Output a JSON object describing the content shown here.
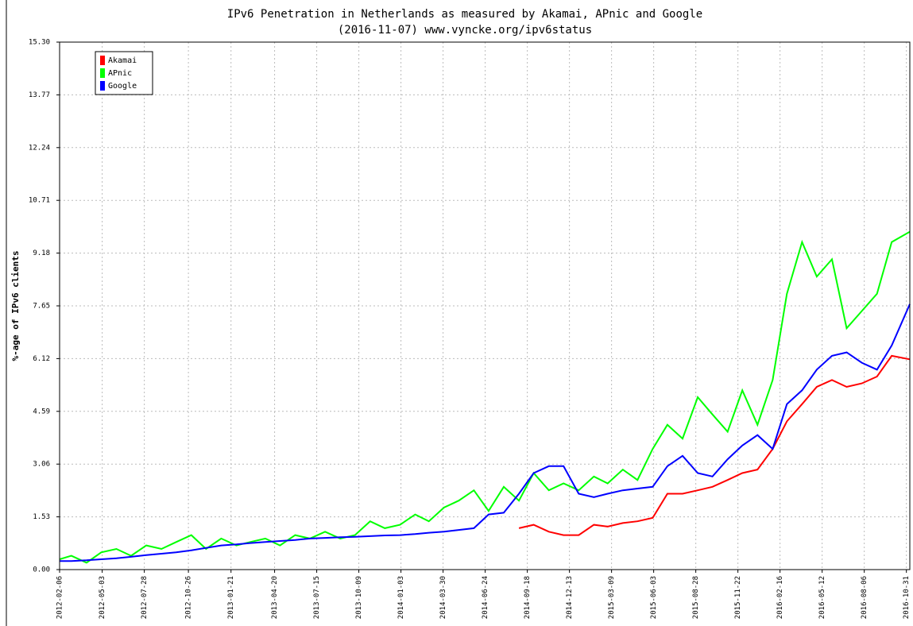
{
  "chart_data": {
    "type": "line",
    "title": "IPv6 Penetration in Netherlands as measured by Akamai, APnic and Google",
    "subtitle": "(2016-11-07) www.vyncke.org/ipv6status",
    "y_label": "%-age of IPv6 clients",
    "x": [
      "2012-02-06",
      "2012-03-01",
      "2012-04-01",
      "2012-05-01",
      "2012-06-01",
      "2012-07-01",
      "2012-08-01",
      "2012-09-01",
      "2012-10-01",
      "2012-11-01",
      "2012-12-01",
      "2013-01-01",
      "2013-02-01",
      "2013-03-01",
      "2013-04-01",
      "2013-05-01",
      "2013-06-01",
      "2013-07-01",
      "2013-08-01",
      "2013-09-01",
      "2013-10-01",
      "2013-11-01",
      "2013-12-01",
      "2014-01-01",
      "2014-02-01",
      "2014-03-01",
      "2014-04-01",
      "2014-05-01",
      "2014-06-01",
      "2014-07-01",
      "2014-08-01",
      "2014-09-01",
      "2014-10-01",
      "2014-11-01",
      "2014-12-01",
      "2015-01-01",
      "2015-02-01",
      "2015-03-01",
      "2015-04-01",
      "2015-05-01",
      "2015-06-01",
      "2015-07-01",
      "2015-08-01",
      "2015-09-01",
      "2015-10-01",
      "2015-11-01",
      "2015-12-01",
      "2016-01-01",
      "2016-02-01",
      "2016-03-01",
      "2016-04-01",
      "2016-05-01",
      "2016-06-01",
      "2016-07-01",
      "2016-08-01",
      "2016-09-01",
      "2016-10-01",
      "2016-11-07"
    ],
    "series": [
      {
        "name": "Akamai",
        "color": "#ff0000",
        "values": [
          null,
          null,
          null,
          null,
          null,
          null,
          null,
          null,
          null,
          null,
          null,
          null,
          null,
          null,
          null,
          null,
          null,
          null,
          null,
          null,
          null,
          null,
          null,
          null,
          null,
          null,
          null,
          null,
          null,
          null,
          null,
          1.2,
          1.3,
          1.1,
          1.0,
          1.0,
          1.3,
          1.25,
          1.35,
          1.4,
          1.5,
          2.2,
          2.2,
          2.3,
          2.4,
          2.6,
          2.8,
          2.9,
          3.5,
          4.3,
          4.8,
          5.3,
          5.5,
          5.3,
          5.4,
          5.6,
          6.2,
          6.1
        ]
      },
      {
        "name": "APnic",
        "color": "#00ff00",
        "values": [
          0.3,
          0.4,
          0.2,
          0.5,
          0.6,
          0.4,
          0.7,
          0.6,
          0.8,
          1.0,
          0.6,
          0.9,
          0.7,
          0.8,
          0.9,
          0.7,
          1.0,
          0.9,
          1.1,
          0.9,
          1.0,
          1.4,
          1.2,
          1.3,
          1.6,
          1.4,
          1.8,
          2.0,
          2.3,
          1.7,
          2.4,
          2.0,
          2.8,
          2.3,
          2.5,
          2.3,
          2.7,
          2.5,
          2.9,
          2.6,
          3.5,
          4.2,
          3.8,
          5.0,
          4.5,
          4.0,
          5.2,
          4.2,
          5.5,
          8.0,
          9.5,
          8.5,
          9.0,
          7.0,
          7.5,
          8.0,
          9.5,
          9.8
        ]
      },
      {
        "name": "Google",
        "color": "#0000ff",
        "values": [
          0.25,
          0.25,
          0.27,
          0.3,
          0.33,
          0.37,
          0.42,
          0.46,
          0.5,
          0.56,
          0.63,
          0.7,
          0.73,
          0.77,
          0.8,
          0.83,
          0.86,
          0.9,
          0.92,
          0.94,
          0.95,
          0.97,
          0.99,
          1.0,
          1.03,
          1.07,
          1.1,
          1.15,
          1.2,
          1.6,
          1.65,
          2.2,
          2.8,
          3.0,
          3.0,
          2.2,
          2.1,
          2.2,
          2.3,
          2.35,
          2.4,
          3.0,
          3.3,
          2.8,
          2.7,
          3.2,
          3.6,
          3.9,
          3.5,
          4.8,
          5.2,
          5.8,
          6.2,
          6.3,
          6.0,
          5.8,
          6.5,
          7.7
        ]
      }
    ],
    "xlim": [
      "2012-02-06",
      "2016-11-07"
    ],
    "xticks": [
      "2012-02-06",
      "2012-05-03",
      "2012-07-28",
      "2012-10-26",
      "2013-01-21",
      "2013-04-20",
      "2013-07-15",
      "2013-10-09",
      "2014-01-03",
      "2014-03-30",
      "2014-06-24",
      "2014-09-18",
      "2014-12-13",
      "2015-03-09",
      "2015-06-03",
      "2015-08-28",
      "2015-11-22",
      "2016-02-16",
      "2016-05-12",
      "2016-08-06",
      "2016-10-31"
    ],
    "ylim": [
      0,
      15.3
    ],
    "yticks": [
      {
        "value": 0,
        "label": "0.00"
      },
      1.53,
      3.06,
      4.59,
      6.12,
      7.65,
      {
        "value": 9.18,
        "label": "9.18"
      },
      {
        "value": 10.71,
        "label": "10.71"
      },
      {
        "value": 12.24,
        "label": "12.24"
      },
      {
        "value": 13.77,
        "label": "13.77"
      },
      {
        "value": 15.3,
        "label": "15.30"
      }
    ],
    "grid": true,
    "legend": "upper left"
  }
}
